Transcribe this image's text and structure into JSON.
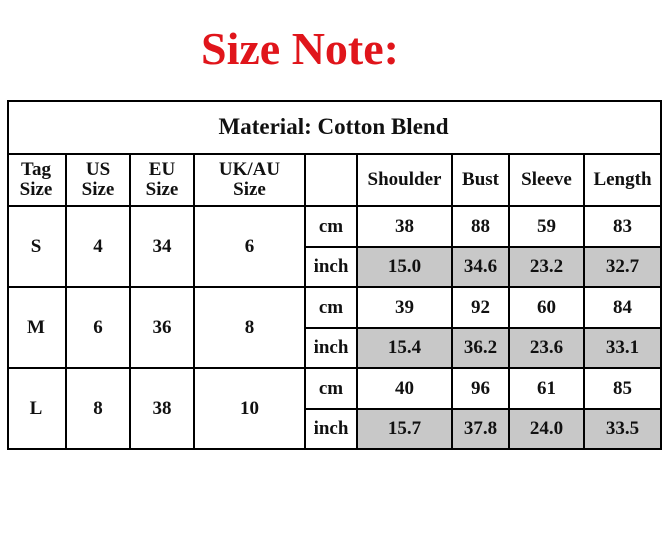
{
  "title": "Size Note:",
  "table": {
    "caption": "Material: Cotton Blend",
    "header": [
      "Tag Size",
      "US Size",
      "EU Size",
      "UK/AU Size",
      "Shoulder",
      "Bust",
      "Sleeve",
      "Length"
    ],
    "rows": [
      {
        "tag": "S",
        "us": "4",
        "eu": "34",
        "ukau": "6",
        "units": [
          {
            "unit": "cm",
            "values": [
              "38",
              "88",
              "59",
              "83"
            ]
          },
          {
            "unit": "inch",
            "values": [
              "15.0",
              "34.6",
              "23.2",
              "32.7"
            ]
          }
        ]
      },
      {
        "tag": "M",
        "us": "6",
        "eu": "36",
        "ukau": "8",
        "units": [
          {
            "unit": "cm",
            "values": [
              "39",
              "92",
              "60",
              "84"
            ]
          },
          {
            "unit": "inch",
            "values": [
              "15.4",
              "36.2",
              "23.6",
              "33.1"
            ]
          }
        ]
      },
      {
        "tag": "L",
        "us": "8",
        "eu": "38",
        "ukau": "10",
        "units": [
          {
            "unit": "cm",
            "values": [
              "40",
              "96",
              "61",
              "85"
            ]
          },
          {
            "unit": "inch",
            "values": [
              "15.7",
              "37.8",
              "24.0",
              "33.5"
            ]
          }
        ]
      }
    ]
  }
}
